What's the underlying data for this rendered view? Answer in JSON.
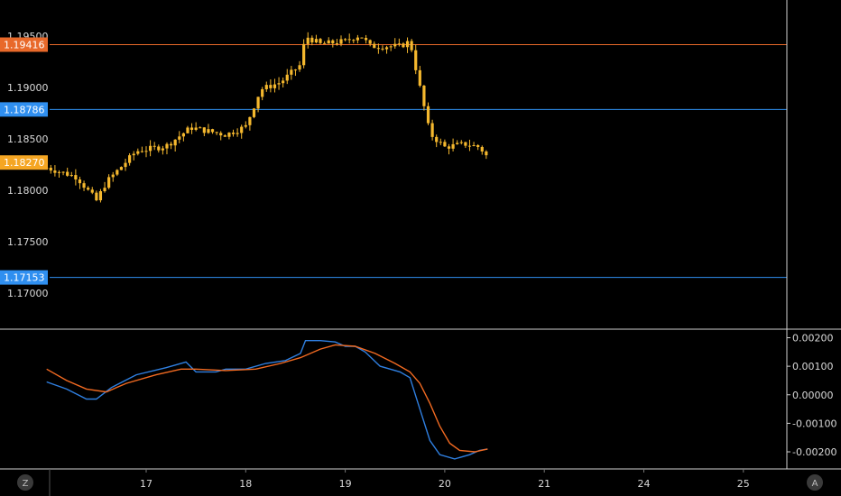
{
  "colors": {
    "background": "#000000",
    "divider": "#cfcfcf",
    "candle": "#f5b82e",
    "resistance": "#e8692a",
    "support": "#2f8ff0",
    "current_price_tag": "#f5a623",
    "macd_line": "#2f7fe0",
    "signal_line": "#f26a21"
  },
  "corner_buttons": {
    "left": "Z",
    "right": "A"
  },
  "chart_data": [
    {
      "type": "candlestick",
      "title": "",
      "xlabel": "",
      "ylabel": "",
      "x_ticks": [
        "17",
        "18",
        "19",
        "20",
        "21",
        "24",
        "25"
      ],
      "y_ticks": [
        "1.19500",
        "1.19000",
        "1.18500",
        "1.18000",
        "1.17500",
        "1.17000"
      ],
      "ylim": [
        1.1665,
        1.1985
      ],
      "grid": false,
      "price_tags": [
        {
          "label": "1.19416",
          "price": 1.19416,
          "kind": "resistance"
        },
        {
          "label": "1.18786",
          "price": 1.18786,
          "kind": "support"
        },
        {
          "label": "1.18270",
          "price": 1.1827,
          "kind": "current_price"
        },
        {
          "label": "1.17153",
          "price": 1.17153,
          "kind": "support"
        }
      ],
      "horizontal_lines": [
        {
          "price": 1.19416,
          "kind": "resistance"
        },
        {
          "price": 1.18786,
          "kind": "support"
        },
        {
          "price": 1.17153,
          "kind": "support"
        }
      ],
      "close_path": [
        [
          16.0,
          1.1822
        ],
        [
          16.3,
          1.1813
        ],
        [
          16.5,
          1.179
        ],
        [
          16.6,
          1.1808
        ],
        [
          16.9,
          1.1838
        ],
        [
          17.2,
          1.1843
        ],
        [
          17.45,
          1.1861
        ],
        [
          17.8,
          1.1854
        ],
        [
          18.0,
          1.1862
        ],
        [
          18.15,
          1.1898
        ],
        [
          18.35,
          1.1905
        ],
        [
          18.55,
          1.1922
        ],
        [
          18.6,
          1.195
        ],
        [
          18.75,
          1.1942
        ],
        [
          19.0,
          1.1945
        ],
        [
          19.15,
          1.1951
        ],
        [
          19.25,
          1.194
        ],
        [
          19.55,
          1.194
        ],
        [
          19.65,
          1.1945
        ],
        [
          19.75,
          1.19
        ],
        [
          19.85,
          1.1855
        ],
        [
          20.0,
          1.1842
        ],
        [
          20.2,
          1.1845
        ],
        [
          20.35,
          1.1842
        ],
        [
          20.43,
          1.1832
        ]
      ]
    },
    {
      "type": "line",
      "title": "",
      "y_ticks": [
        "0.00200",
        "0.00100",
        "0.00000",
        "-0.00100",
        "-0.00200"
      ],
      "ylim": [
        -0.0026,
        0.0023
      ],
      "series": [
        {
          "color": "#2f7fe0",
          "points": [
            [
              16.0,
              0.00045
            ],
            [
              16.2,
              0.0002
            ],
            [
              16.4,
              -0.00015
            ],
            [
              16.5,
              -0.00015
            ],
            [
              16.65,
              0.00025
            ],
            [
              16.9,
              0.0007
            ],
            [
              17.2,
              0.00095
            ],
            [
              17.4,
              0.00115
            ],
            [
              17.5,
              0.0008
            ],
            [
              17.7,
              0.0008
            ],
            [
              17.8,
              0.0009
            ],
            [
              18.0,
              0.0009
            ],
            [
              18.2,
              0.0011
            ],
            [
              18.4,
              0.0012
            ],
            [
              18.55,
              0.00145
            ],
            [
              18.6,
              0.0019
            ],
            [
              18.75,
              0.0019
            ],
            [
              18.9,
              0.00185
            ],
            [
              19.0,
              0.0017
            ],
            [
              19.1,
              0.0017
            ],
            [
              19.2,
              0.0015
            ],
            [
              19.35,
              0.001
            ],
            [
              19.55,
              0.0008
            ],
            [
              19.65,
              0.0006
            ],
            [
              19.75,
              -0.0005
            ],
            [
              19.85,
              -0.0016
            ],
            [
              19.95,
              -0.0021
            ],
            [
              20.1,
              -0.00225
            ],
            [
              20.25,
              -0.0021
            ],
            [
              20.35,
              -0.00195
            ],
            [
              20.43,
              -0.0019
            ]
          ]
        },
        {
          "color": "#f26a21",
          "points": [
            [
              16.0,
              0.0009
            ],
            [
              16.2,
              0.0005
            ],
            [
              16.4,
              0.0002
            ],
            [
              16.6,
              0.0001
            ],
            [
              16.8,
              0.0004
            ],
            [
              17.1,
              0.0007
            ],
            [
              17.35,
              0.0009
            ],
            [
              17.5,
              0.0009
            ],
            [
              17.8,
              0.00085
            ],
            [
              18.1,
              0.0009
            ],
            [
              18.35,
              0.0011
            ],
            [
              18.55,
              0.0013
            ],
            [
              18.75,
              0.0016
            ],
            [
              18.9,
              0.00175
            ],
            [
              19.1,
              0.0017
            ],
            [
              19.3,
              0.00145
            ],
            [
              19.5,
              0.0011
            ],
            [
              19.65,
              0.0008
            ],
            [
              19.75,
              0.0004
            ],
            [
              19.85,
              -0.0003
            ],
            [
              19.95,
              -0.0011
            ],
            [
              20.05,
              -0.0017
            ],
            [
              20.15,
              -0.00195
            ],
            [
              20.3,
              -0.002
            ],
            [
              20.43,
              -0.0019
            ]
          ]
        }
      ]
    }
  ]
}
